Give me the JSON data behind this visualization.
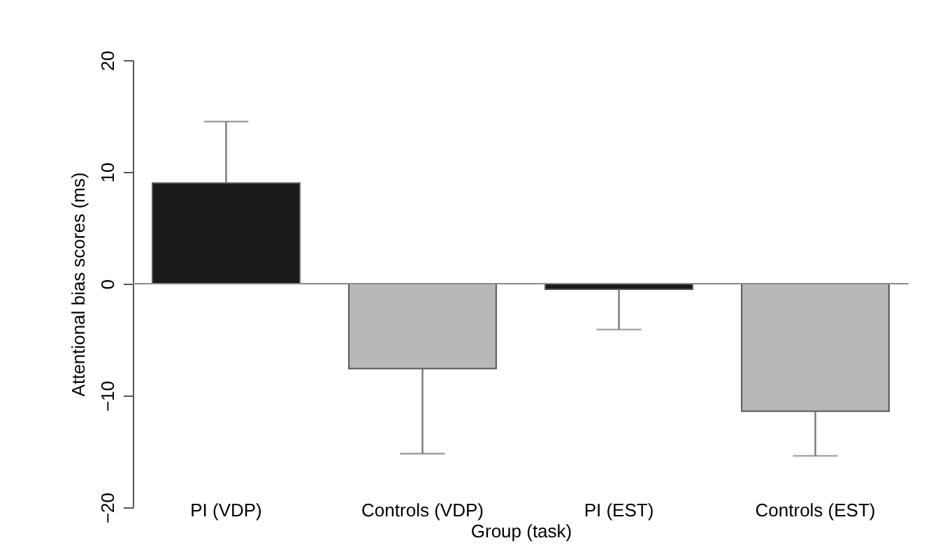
{
  "chart_data": {
    "type": "bar",
    "xlabel": "Group (task)",
    "ylabel": "Attentional bias scores (ms)",
    "categories": [
      "PI (VDP)",
      "Controls (VDP)",
      "PI (EST)",
      "Controls (EST)"
    ],
    "values": [
      9.0,
      -7.6,
      -0.5,
      -11.4
    ],
    "colors": [
      "#1a1a1a",
      "#b8b8ba",
      "#1a1a1a",
      "#b8b8ba"
    ],
    "errors": [
      [
        9.0,
        14.5
      ],
      [
        -15.2,
        -7.6
      ],
      [
        -4.1,
        -0.5
      ],
      [
        -15.4,
        -11.4
      ]
    ],
    "ylim": [
      -20,
      20
    ],
    "yticks": [
      -20,
      -10,
      0,
      10,
      20
    ],
    "ref_lines": [
      {
        "axis": "y",
        "value": 0,
        "color": "#888888"
      }
    ],
    "grid": false,
    "legend": false
  }
}
